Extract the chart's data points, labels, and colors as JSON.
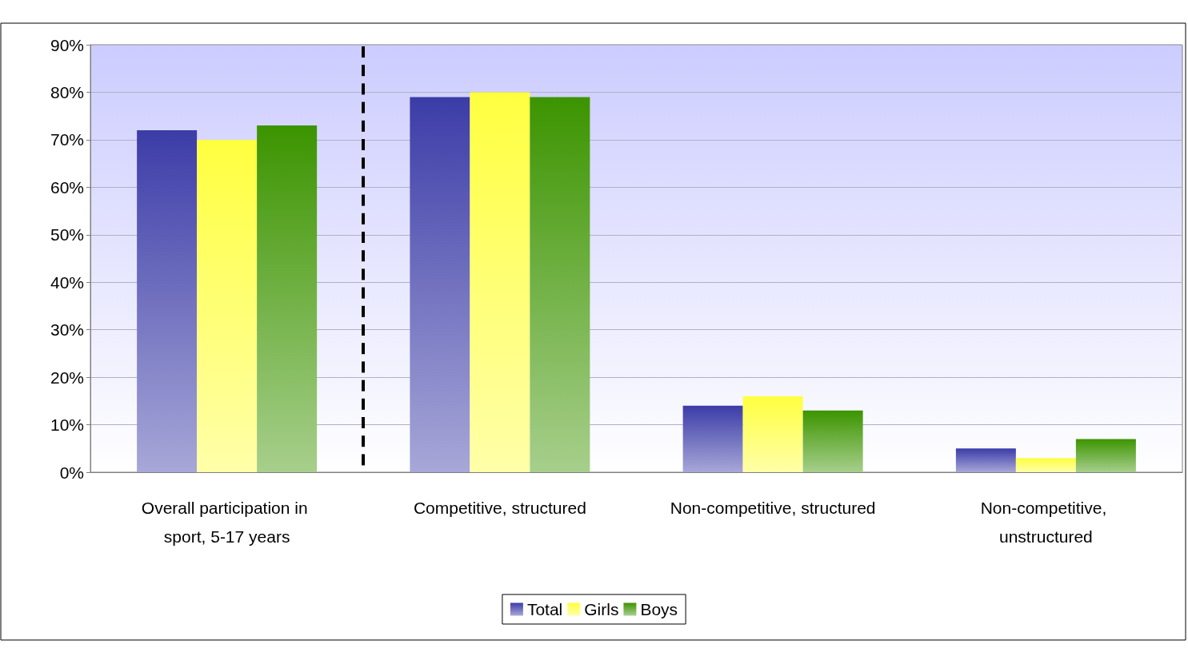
{
  "chart_data": {
    "type": "bar",
    "categories": [
      "Overall participation in sport, 5-17 years",
      "Competitive, structured",
      "Non-competitive, structured",
      "Non-competitive, unstructured"
    ],
    "series": [
      {
        "name": "Total",
        "color": "#3c3ca8",
        "values": [
          72,
          79,
          14,
          5
        ]
      },
      {
        "name": "Girls",
        "color": "#ffff40",
        "values": [
          70,
          80,
          16,
          3
        ]
      },
      {
        "name": "Boys",
        "color": "#3c9400",
        "values": [
          73,
          79,
          13,
          7
        ]
      }
    ],
    "ylim": [
      0,
      90
    ],
    "yticks": [
      {
        "value": 0,
        "label": "0%"
      },
      {
        "value": 10,
        "label": "10%"
      },
      {
        "value": 20,
        "label": "20%"
      },
      {
        "value": 30,
        "label": "30%"
      },
      {
        "value": 40,
        "label": "40%"
      },
      {
        "value": 50,
        "label": "50%"
      },
      {
        "value": 60,
        "label": "60%"
      },
      {
        "value": 70,
        "label": "70%"
      },
      {
        "value": 80,
        "label": "80%"
      },
      {
        "value": 90,
        "label": "90%"
      }
    ],
    "grid": "y",
    "legend": "bottom"
  }
}
